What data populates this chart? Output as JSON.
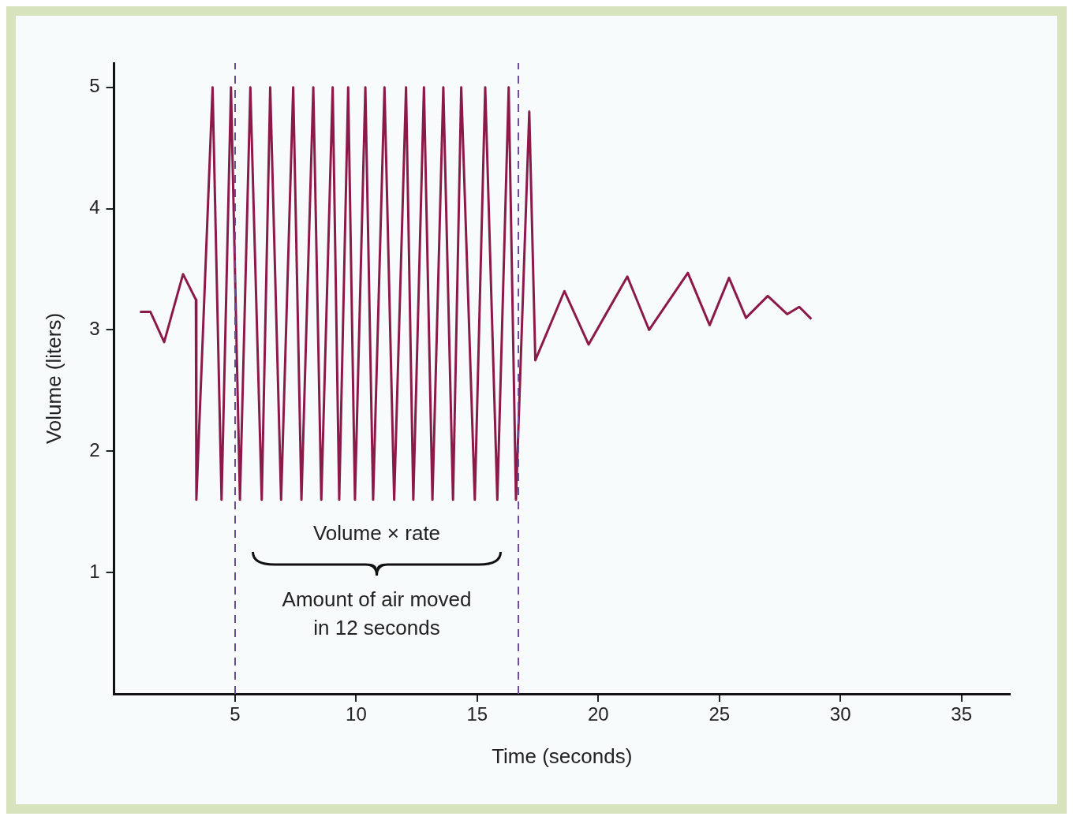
{
  "chart_data": {
    "type": "line",
    "xlabel": "Time (seconds)",
    "ylabel": "Volume (liters)",
    "x": [
      1.07,
      1.5,
      2.07,
      2.85,
      3.38,
      3.4,
      4.07,
      4.44,
      4.83,
      5.2,
      5.63,
      6.1,
      6.45,
      6.9,
      7.4,
      7.74,
      8.23,
      8.56,
      9.03,
      9.3,
      9.67,
      9.95,
      10.38,
      10.7,
      11.17,
      11.57,
      12.06,
      12.36,
      12.8,
      13.15,
      13.6,
      14.0,
      14.34,
      14.9,
      15.33,
      15.83,
      16.3,
      16.6,
      17.15,
      17.4,
      18.6,
      19.6,
      21.2,
      22.1,
      23.7,
      24.6,
      25.4,
      26.1,
      27.0,
      27.8,
      28.3,
      28.8
    ],
    "series": [
      {
        "color": "#8b1a4b",
        "values": [
          3.15,
          3.15,
          2.9,
          3.46,
          3.25,
          1.6,
          5.0,
          1.6,
          5.0,
          1.6,
          5.0,
          1.6,
          5.0,
          1.6,
          5.0,
          1.6,
          5.0,
          1.6,
          5.0,
          1.6,
          5.0,
          1.6,
          5.0,
          1.6,
          5.0,
          1.6,
          5.0,
          1.6,
          5.0,
          1.6,
          5.0,
          1.6,
          5.0,
          1.6,
          5.0,
          1.6,
          5.0,
          1.6,
          4.8,
          2.75,
          3.32,
          2.88,
          3.44,
          3.0,
          3.47,
          3.04,
          3.43,
          3.1,
          3.28,
          3.13,
          3.19,
          3.09
        ]
      }
    ],
    "xlim": [
      0,
      37
    ],
    "xticks": [
      5,
      10,
      15,
      20,
      25,
      30,
      35
    ],
    "ylim": [
      0,
      5.2
    ],
    "yticks": [
      1,
      2,
      3,
      4,
      5
    ],
    "grid": false,
    "legend": false,
    "marker": "none",
    "line_style": "solid",
    "ref_lines": [
      {
        "axis": "x",
        "value": 5,
        "color": "#6a4c93",
        "line_style": "dashed"
      },
      {
        "axis": "x",
        "value": 16.7,
        "color": "#6a4c93",
        "line_style": "dashed"
      }
    ],
    "annotations": [
      "Volume × rate",
      "Amount of air moved in 12 seconds"
    ]
  }
}
